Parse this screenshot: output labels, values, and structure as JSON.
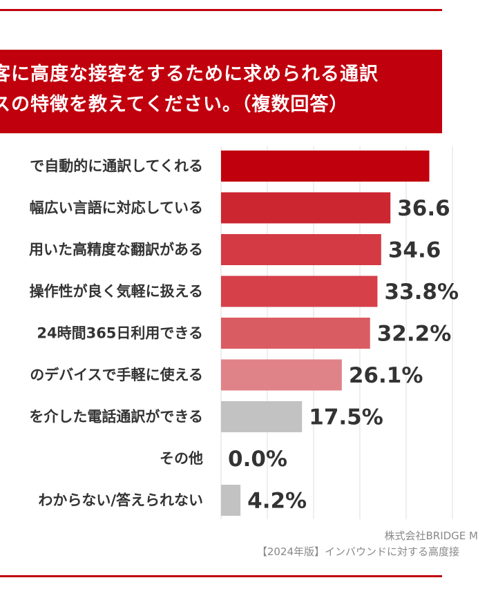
{
  "title": "客に高度な接客をするために求められる通訳\nスの特徴を教えてください。（複数回答）",
  "source_lines": [
    "株式会社BRIDGE M",
    "【2024年版】インバウンドに対する高度接"
  ],
  "colors": {
    "accent": "#c0000d",
    "bar_shades": [
      "#c0000d",
      "#cc2630",
      "#d43a43",
      "#d64049",
      "#da5c63",
      "#e08388",
      "#c2c2c2",
      "#c2c2c2",
      "#c2c2c2"
    ],
    "gridline": "#dddddd"
  },
  "chart_data": {
    "type": "bar",
    "orientation": "horizontal",
    "title": "客に高度な接客をするために求められる通訳\nスの特徴を教えてください。（複数回答）",
    "categories": [
      "で自動的に通訳してくれる",
      "幅広い言語に対応している",
      "用いた高精度な翻訳がある",
      "操作性が良く気軽に扱える",
      "24時間365日利用できる",
      "のデバイスで手軽に使える",
      "を介した電話通訳ができる",
      "その他",
      "わからない/答えられない"
    ],
    "values": [
      45,
      36.6,
      34.6,
      33.8,
      32.2,
      26.1,
      17.5,
      0.0,
      4.2
    ],
    "value_labels": [
      "",
      "36.6",
      "34.6",
      "33.8%",
      "32.2%",
      "26.1%",
      "17.5%",
      "0.0%",
      "4.2%"
    ],
    "xlim": [
      0,
      50
    ],
    "grid": true
  }
}
